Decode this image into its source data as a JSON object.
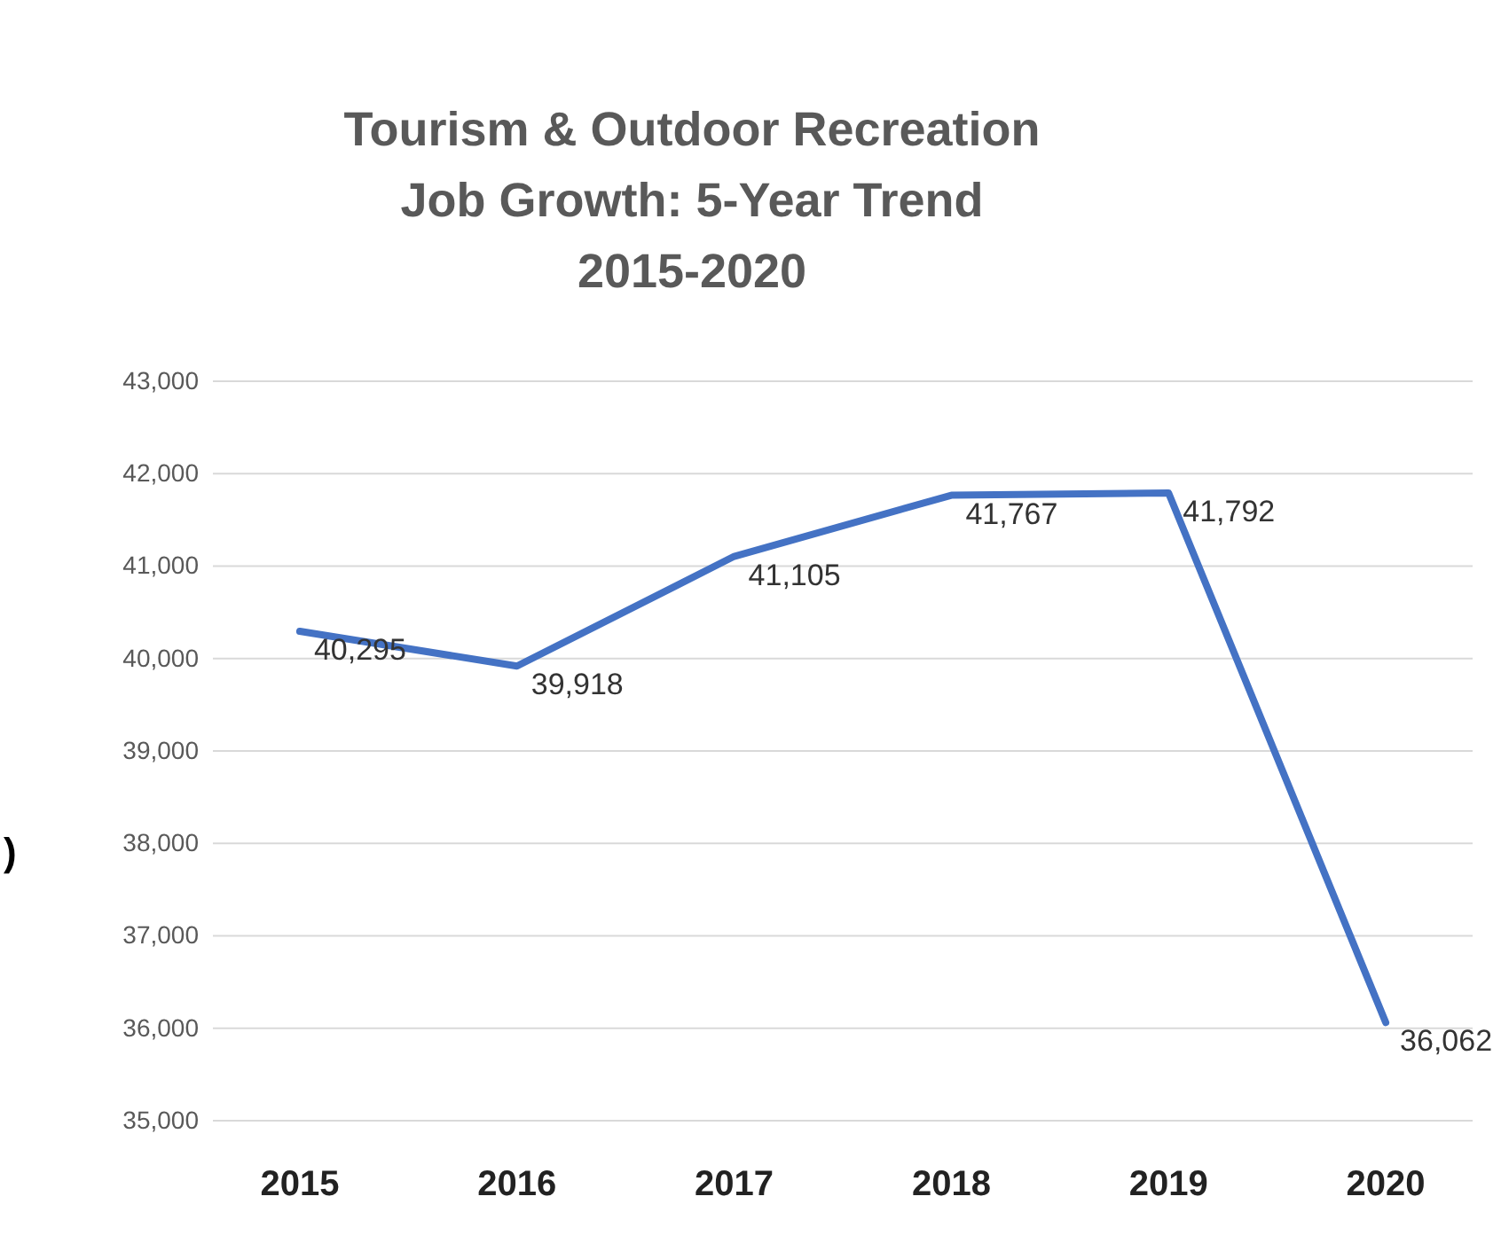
{
  "chart_data": {
    "type": "line",
    "title": "Tourism & Outdoor Recreation\nJob Growth: 5-Year Trend\n2015-2020",
    "categories": [
      "2015",
      "2016",
      "2017",
      "2018",
      "2019",
      "2020"
    ],
    "series": [
      {
        "color": "#4472c4",
        "values": [
          40295,
          39918,
          41105,
          41767,
          41792,
          36062
        ],
        "value_labels": [
          "40,295",
          "39,918",
          "41,105",
          "41,767",
          "41,792",
          "36,062"
        ]
      }
    ],
    "ylim": [
      35000,
      43000
    ],
    "yticks": [
      {
        "value": 35000,
        "label": "35,000"
      },
      {
        "value": 36000,
        "label": "36,000"
      },
      {
        "value": 37000,
        "label": "37,000"
      },
      {
        "value": 38000,
        "label": "38,000"
      },
      {
        "value": 39000,
        "label": "39,000"
      },
      {
        "value": 40000,
        "label": "40,000"
      },
      {
        "value": 41000,
        "label": "41,000"
      },
      {
        "value": 42000,
        "label": "42,000"
      },
      {
        "value": 43000,
        "label": "43,000"
      }
    ],
    "grid": "y",
    "marker": "none",
    "line_style": "solid",
    "annotations": [
      ")"
    ]
  }
}
